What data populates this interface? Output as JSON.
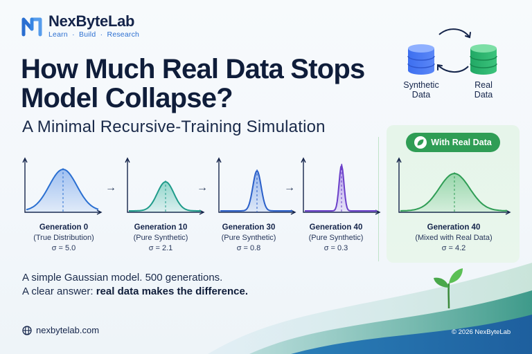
{
  "brand": {
    "name": "NexByteLab",
    "tagline": "Learn  ·  Build  ·  Research"
  },
  "headline": {
    "line1": "How Much Real Data Stops",
    "line2": "Model Collapse?"
  },
  "subtitle": "A Minimal Recursive-Training Simulation",
  "cycle": {
    "synthetic_label_1": "Synthetic",
    "synthetic_label_2": "Data",
    "real_label_1": "Real",
    "real_label_2": "Data"
  },
  "generations": [
    {
      "title": "Generation 0",
      "subtitle": "(True Distribution)",
      "sigma": "σ = 5.0"
    },
    {
      "title": "Generation 10",
      "subtitle": "(Pure Synthetic)",
      "sigma": "σ = 2.1"
    },
    {
      "title": "Generation 30",
      "subtitle": "(Pure Synthetic)",
      "sigma": "σ = 0.8"
    },
    {
      "title": "Generation 40",
      "subtitle": "(Pure Synthetic)",
      "sigma": "σ = 0.3"
    },
    {
      "title": "Generation 40",
      "subtitle": "(Mixed with Real Data)",
      "sigma": "σ = 4.2"
    }
  ],
  "badge": "With Real Data",
  "arrow_glyph": "→",
  "bottom": {
    "line1": "A simple Gaussian model. 500 generations.",
    "line2_prefix": "A clear answer: ",
    "line2_bold": "real data makes the difference."
  },
  "footer": {
    "url": "nexbytelab.com",
    "copyright": "© 2026 NexByteLab"
  },
  "colors": {
    "blue": "#2a6fd1",
    "teal": "#1f9b8a",
    "purple": "#6b3fc9",
    "green": "#2f9d55"
  }
}
